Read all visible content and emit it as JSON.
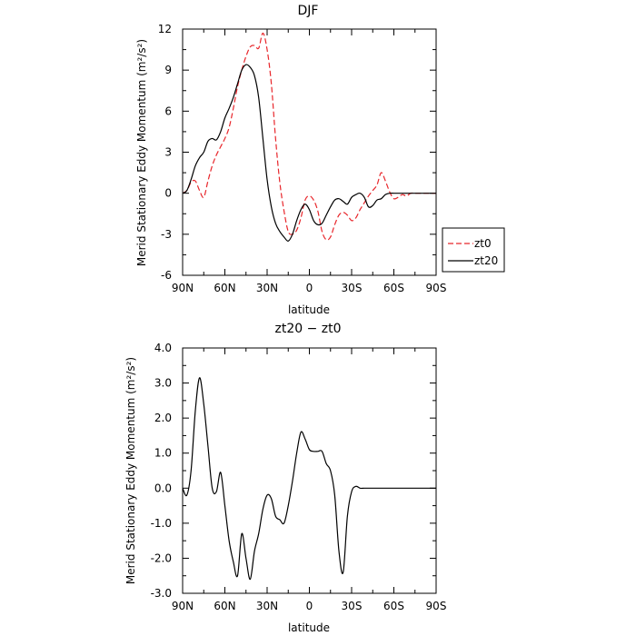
{
  "chart_data": [
    {
      "type": "line",
      "title": "DJF",
      "xlabel": "latitude",
      "ylabel": "Merid Stationary Eddy Momentum (m²/s²)",
      "x_tick_labels": [
        "90N",
        "60N",
        "30N",
        "0",
        "30S",
        "60S",
        "90S"
      ],
      "x_tick_values": [
        90,
        60,
        30,
        0,
        -30,
        -60,
        -90
      ],
      "xlim": [
        90,
        -90
      ],
      "y_tick_labels": [
        "12",
        "9",
        "6",
        "3",
        "0",
        "-3",
        "-6"
      ],
      "y_tick_values": [
        12,
        9,
        6,
        3,
        0,
        -3,
        -6
      ],
      "ylim": [
        -6,
        12
      ],
      "legend_position": "right, outside plot",
      "x": [
        90,
        87,
        84,
        81,
        78,
        75,
        72,
        69,
        66,
        63,
        60,
        57,
        54,
        51,
        48,
        45,
        42,
        39,
        36,
        33,
        30,
        27,
        24,
        21,
        18,
        15,
        12,
        9,
        6,
        3,
        0,
        -3,
        -6,
        -9,
        -12,
        -15,
        -18,
        -21,
        -24,
        -27,
        -30,
        -33,
        -36,
        -39,
        -42,
        -45,
        -48,
        -51,
        -54,
        -57,
        -60,
        -63,
        -66,
        -69,
        -72,
        -75,
        -78,
        -81,
        -84,
        -87,
        -90
      ],
      "series": [
        {
          "name": "zt0",
          "color": "#e8262b",
          "dash": "dashed",
          "values": [
            0,
            0.2,
            0.8,
            0.9,
            0.2,
            -0.3,
            0.9,
            2.0,
            2.8,
            3.4,
            4.0,
            4.8,
            6.2,
            7.8,
            9.0,
            10.0,
            10.7,
            10.8,
            10.6,
            11.7,
            10.5,
            8.0,
            4.0,
            0.8,
            -1.3,
            -2.8,
            -3.0,
            -2.7,
            -1.8,
            -0.5,
            -0.2,
            -0.5,
            -1.3,
            -2.8,
            -3.4,
            -3.2,
            -2.3,
            -1.6,
            -1.4,
            -1.6,
            -2.0,
            -1.8,
            -1.2,
            -0.7,
            -0.2,
            0.2,
            0.6,
            1.5,
            0.9,
            0.1,
            -0.4,
            -0.3,
            -0.1,
            -0.2,
            0,
            0,
            0,
            0,
            0,
            0,
            0
          ]
        },
        {
          "name": "zt20",
          "color": "#000000",
          "dash": "solid",
          "values": [
            0,
            0.2,
            1.0,
            2.0,
            2.6,
            3.0,
            3.8,
            4.0,
            3.9,
            4.5,
            5.5,
            6.2,
            7.0,
            8.0,
            9.0,
            9.4,
            9.2,
            8.6,
            7.0,
            4.0,
            1.0,
            -1.0,
            -2.2,
            -2.8,
            -3.2,
            -3.5,
            -3.0,
            -2.0,
            -1.2,
            -0.8,
            -1.2,
            -2.0,
            -2.3,
            -2.2,
            -1.6,
            -1.0,
            -0.5,
            -0.4,
            -0.6,
            -0.8,
            -0.3,
            -0.1,
            0.0,
            -0.3,
            -1.0,
            -0.9,
            -0.5,
            -0.4,
            -0.1,
            0,
            0,
            0,
            0,
            0,
            0,
            0,
            0,
            0,
            0,
            0,
            0
          ]
        }
      ]
    },
    {
      "type": "line",
      "title": "zt20 − zt0",
      "xlabel": "latitude",
      "ylabel": "Merid Stationary Eddy Momentum (m²/s²)",
      "x_tick_labels": [
        "90N",
        "60N",
        "30N",
        "0",
        "30S",
        "60S",
        "90S"
      ],
      "x_tick_values": [
        90,
        60,
        30,
        0,
        -30,
        -60,
        -90
      ],
      "xlim": [
        90,
        -90
      ],
      "y_tick_labels": [
        "4.0",
        "3.0",
        "2.0",
        "1.0",
        "0.0",
        "-1.0",
        "-2.0",
        "-3.0"
      ],
      "y_tick_values": [
        4,
        3,
        2,
        1,
        0,
        -1,
        -2,
        -3
      ],
      "ylim": [
        -3,
        4
      ],
      "x": [
        90,
        87,
        84,
        81,
        78,
        75,
        72,
        69,
        66,
        63,
        60,
        57,
        54,
        51,
        48,
        45,
        42,
        39,
        36,
        33,
        30,
        27,
        24,
        21,
        18,
        15,
        12,
        9,
        6,
        3,
        0,
        -3,
        -6,
        -9,
        -12,
        -15,
        -18,
        -21,
        -24,
        -27,
        -30,
        -33,
        -36,
        -39,
        -42,
        -45,
        -48,
        -51,
        -54,
        -57,
        -60,
        -63,
        -66,
        -69,
        -72,
        -75,
        -78,
        -81,
        -84,
        -87,
        -90
      ],
      "series": [
        {
          "color": "#000000",
          "dash": "solid",
          "values": [
            0,
            -0.2,
            0.5,
            2.2,
            3.15,
            2.4,
            1.2,
            0.0,
            -0.1,
            0.45,
            -0.5,
            -1.5,
            -2.1,
            -2.5,
            -1.3,
            -2.0,
            -2.6,
            -1.8,
            -1.3,
            -0.6,
            -0.2,
            -0.3,
            -0.8,
            -0.9,
            -1.0,
            -0.5,
            0.2,
            1.0,
            1.6,
            1.4,
            1.1,
            1.05,
            1.05,
            1.05,
            0.7,
            0.5,
            -0.2,
            -1.8,
            -2.4,
            -0.8,
            -0.1,
            0.05,
            0,
            0,
            0,
            0,
            0,
            0,
            0,
            0,
            0,
            0,
            0,
            0,
            0,
            0,
            0,
            0,
            0,
            0,
            0
          ]
        }
      ]
    }
  ]
}
